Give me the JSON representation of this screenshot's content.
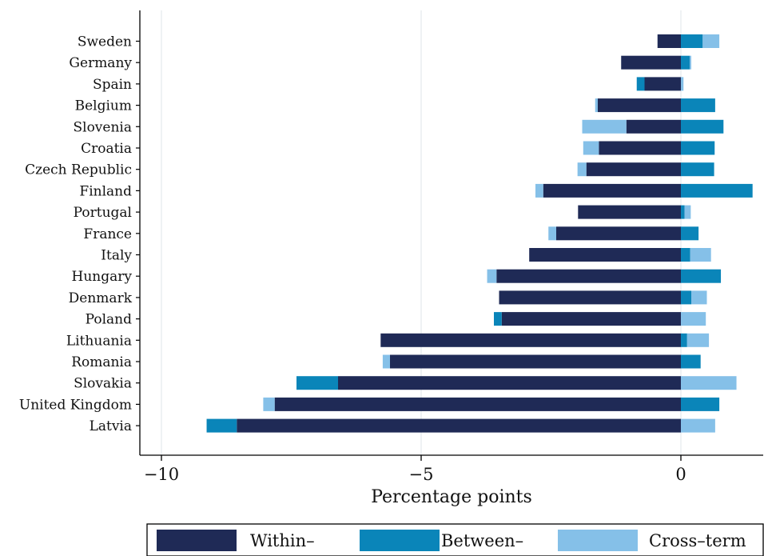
{
  "chart_data": {
    "type": "bar",
    "orientation": "horizontal",
    "stacked": true,
    "categories": [
      "Sweden",
      "Germany",
      "Spain",
      "Belgium",
      "Slovenia",
      "Croatia",
      "Czech Republic",
      "Finland",
      "Portugal",
      "France",
      "Italy",
      "Hungary",
      "Denmark",
      "Poland",
      "Lithuania",
      "Romania",
      "Slovakia",
      "United Kingdom",
      "Latvia"
    ],
    "series": [
      {
        "name": "Within–",
        "color": "#1f2a56",
        "values": [
          -0.45,
          -1.15,
          -0.7,
          -1.6,
          -1.05,
          -1.58,
          -1.82,
          -2.65,
          -1.98,
          -2.4,
          -2.92,
          -3.55,
          -3.5,
          -3.45,
          -5.78,
          -5.6,
          -6.6,
          -7.82,
          -8.55
        ]
      },
      {
        "name": "Between–",
        "color": "#0a85b9",
        "values": [
          0.42,
          0.17,
          -0.15,
          0.66,
          0.82,
          0.65,
          0.64,
          1.38,
          0.07,
          0.34,
          0.18,
          0.77,
          0.2,
          -0.15,
          0.12,
          0.38,
          -0.8,
          0.74,
          -0.58
        ]
      },
      {
        "name": "Cross–term",
        "color": "#85c0e8",
        "values": [
          0.32,
          0.03,
          0.05,
          -0.05,
          -0.85,
          -0.3,
          -0.17,
          -0.15,
          0.12,
          -0.15,
          0.4,
          -0.18,
          0.3,
          0.48,
          0.42,
          -0.14,
          1.07,
          -0.22,
          0.66
        ]
      }
    ],
    "xlabel": "Percentage points",
    "xlim": [
      -10.45,
      1.6
    ],
    "xticks": [
      -10,
      -5,
      0
    ],
    "xtick_labels": [
      "−10",
      "−5",
      "0"
    ],
    "grid": "vertical lines at x ticks",
    "legend": "bottom"
  }
}
